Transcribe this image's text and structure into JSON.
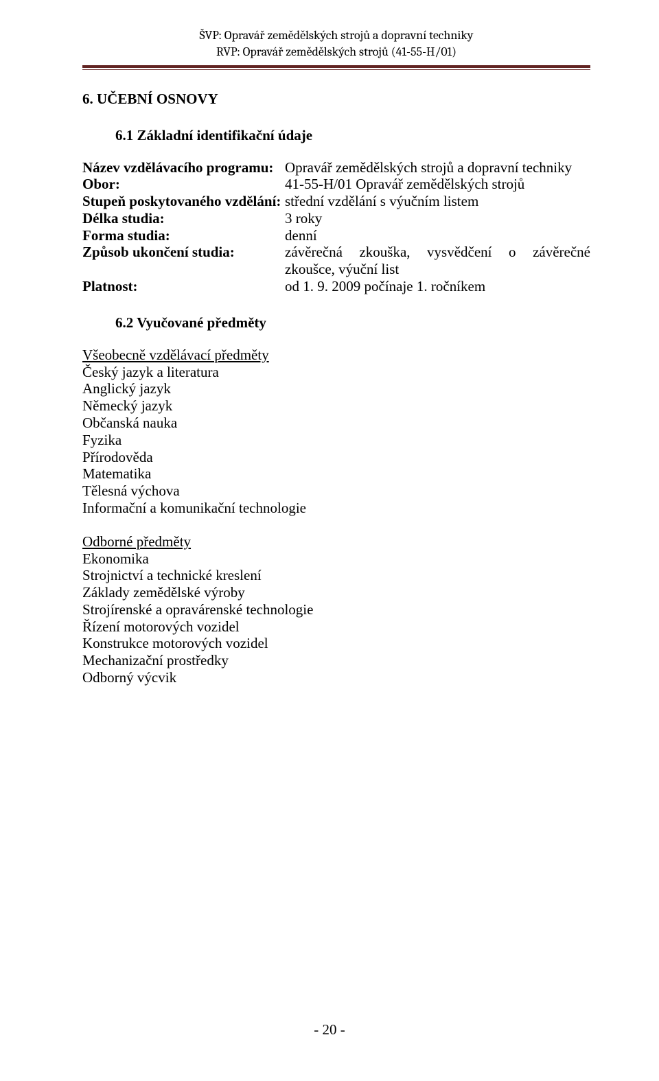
{
  "header": {
    "line1": "ŠVP: Opravář zemědělských strojů a dopravní techniky",
    "line2": "RVP: Opravář zemědělských strojů (41-55-H/01)"
  },
  "h1": "6. UČEBNÍ OSNOVY",
  "h2_a": "6.1 Základní identifikační údaje",
  "ident": [
    {
      "label": "Název vzdělávacího programu:",
      "value": "Opravář zemědělských strojů a dopravní techniky",
      "just": false
    },
    {
      "label": "Obor:",
      "value": "41-55-H/01 Opravář zemědělských strojů",
      "just": false
    },
    {
      "label": "Stupeň poskytovaného vzdělání:",
      "value": "střední vzdělání s výučním listem",
      "just": false
    },
    {
      "label": "Délka studia:",
      "value": "3 roky",
      "just": false
    },
    {
      "label": "Forma studia:",
      "value": "denní",
      "just": false
    },
    {
      "label": "Způsob ukončení studia:",
      "value": "závěrečná zkouška, vysvědčení o závěrečné zkoušce, výuční list",
      "just": true
    },
    {
      "label": "Platnost:",
      "value": "od 1. 9. 2009 počínaje 1. ročníkem",
      "just": false
    }
  ],
  "h2_b": "6.2 Vyučované předměty",
  "group_a": {
    "heading": "Všeobecně vzdělávací předměty",
    "items": [
      "Český jazyk a literatura",
      "Anglický jazyk",
      "Německý jazyk",
      "Občanská nauka",
      "Fyzika",
      "Přírodověda",
      "Matematika",
      "Tělesná výchova",
      "Informační a komunikační technologie"
    ]
  },
  "group_b": {
    "heading": "Odborné předměty",
    "items": [
      "Ekonomika",
      "Strojnictví a technické kreslení",
      "Základy zemědělské výroby",
      "Strojírenské a opravárenské technologie",
      "Řízení motorových vozidel",
      "Konstrukce motorových vozidel",
      "Mechanizační prostředky",
      "Odborný výcvik"
    ]
  },
  "page_number": "- 20 -",
  "colors": {
    "rule": "#622423",
    "text": "#000000",
    "background": "#ffffff"
  }
}
